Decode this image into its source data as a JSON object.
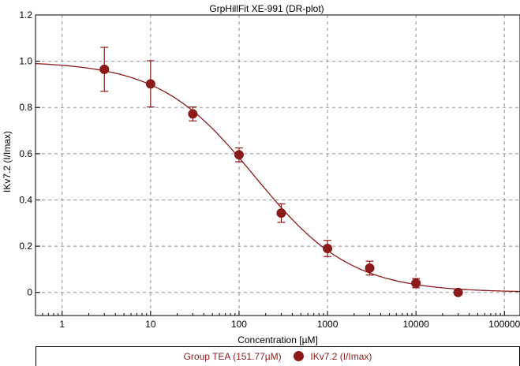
{
  "colors": {
    "series": "#8b1a1a",
    "axis": "#000000",
    "grid": "#909090",
    "background": "#ffffff"
  },
  "legend": {
    "group_label": "Group TEA (151.77µM)",
    "series_label": "IKv7.2 (I/Imax)"
  },
  "chart_data": {
    "type": "scatter",
    "title": "GrpHillFit  XE-991 (DR-plot)",
    "xlabel": "Concentration [µM]",
    "ylabel": "IKv7.2 (I/Imax)",
    "x_scale": "log",
    "xlim": [
      0.5,
      150000
    ],
    "ylim": [
      -0.1,
      1.2
    ],
    "x_ticks": [
      1,
      10,
      100,
      1000,
      10000,
      100000
    ],
    "x_tick_labels": [
      "1",
      "10",
      "100",
      "1000",
      "10000",
      "100000"
    ],
    "y_ticks": [
      0,
      0.2,
      0.4,
      0.6,
      0.8,
      1.0,
      1.2
    ],
    "y_tick_labels": [
      "0",
      "0.2",
      "0.4",
      "0.6",
      "0.8",
      "1.0",
      "1.2"
    ],
    "grid": true,
    "grid_style": "dashed",
    "legend_position": "bottom",
    "series": [
      {
        "name": "IKv7.2 (I/Imax)",
        "color": "#8b1a1a",
        "points": [
          {
            "x": 3,
            "y": 0.965,
            "err": 0.095
          },
          {
            "x": 10,
            "y": 0.902,
            "err": 0.1
          },
          {
            "x": 30,
            "y": 0.772,
            "err": 0.03
          },
          {
            "x": 100,
            "y": 0.595,
            "err": 0.03
          },
          {
            "x": 300,
            "y": 0.343,
            "err": 0.04
          },
          {
            "x": 1000,
            "y": 0.19,
            "err": 0.035
          },
          {
            "x": 3000,
            "y": 0.105,
            "err": 0.03
          },
          {
            "x": 10000,
            "y": 0.04,
            "err": 0.02
          },
          {
            "x": 30000,
            "y": 0.0,
            "err": 0.0
          }
        ]
      }
    ],
    "fit": {
      "type": "hill",
      "ic50": 151.77,
      "top": 1.0,
      "bottom": 0.0,
      "hill_coefficient": 0.8
    }
  }
}
